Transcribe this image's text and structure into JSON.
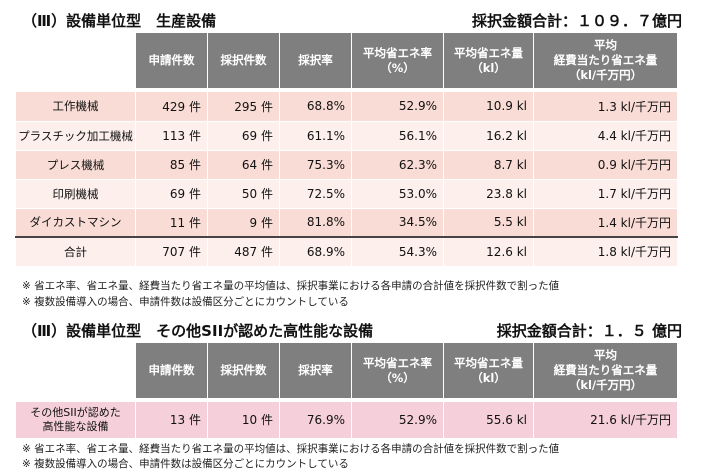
{
  "section1": {
    "title": "（Ⅲ）設備単位型　生産設備",
    "amount": "採択金額合計：１０９．７億円",
    "headers": [
      "申請件数",
      "採択件数",
      "採択率",
      "平均省エネ率\n（%）",
      "平均省エネ量\n（kl）",
      "平均\n経費当たり省エネ量\n（kl/千万円）"
    ],
    "rows": [
      {
        "category": "工作機械",
        "apply": "429 件",
        "adopt": "295 件",
        "rate": "68.8%",
        "save_rate": "52.9%",
        "save_amount": "10.9 kl",
        "per_cost": "1.3 kl/千万円"
      },
      {
        "category": "プラスチック加工機械",
        "apply": "113 件",
        "adopt": "69 件",
        "rate": "61.1%",
        "save_rate": "56.1%",
        "save_amount": "16.2 kl",
        "per_cost": "4.4 kl/千万円"
      },
      {
        "category": "プレス機械",
        "apply": "85 件",
        "adopt": "64 件",
        "rate": "75.3%",
        "save_rate": "62.3%",
        "save_amount": "8.7 kl",
        "per_cost": "0.9 kl/千万円"
      },
      {
        "category": "印刷機械",
        "apply": "69 件",
        "adopt": "50 件",
        "rate": "72.5%",
        "save_rate": "53.0%",
        "save_amount": "23.8 kl",
        "per_cost": "1.7 kl/千万円"
      },
      {
        "category": "ダイカストマシン",
        "apply": "11 件",
        "adopt": "9 件",
        "rate": "81.8%",
        "save_rate": "34.5%",
        "save_amount": "5.5 kl",
        "per_cost": "1.4 kl/千万円"
      }
    ],
    "total": {
      "category": "合計",
      "apply": "707 件",
      "adopt": "487 件",
      "rate": "68.9%",
      "save_rate": "54.3%",
      "save_amount": "12.6 kl",
      "per_cost": "1.8 kl/千万円"
    },
    "notes": [
      "※ 省エネ率、省エネ量、経費当たり省エネ量の平均値は、採択事業における各申請の合計値を採択件数で割った値",
      "※ 複数設備導入の場合、申請件数は設備区分ごとにカウントしている"
    ]
  },
  "section2": {
    "title": "（Ⅲ）設備単位型　その他SIIが認めた高性能な設備",
    "amount": "採択金額合計：１．５ 億円",
    "headers": [
      "申請件数",
      "採択件数",
      "採択率",
      "平均省エネ率\n（%）",
      "平均省エネ量\n（kl）",
      "平均\n経費当たり省エネ量\n（kl/千万円）"
    ],
    "rows": [
      {
        "category": "その他SIIが認めた\n高性能な設備",
        "apply": "13 件",
        "adopt": "10 件",
        "rate": "76.9%",
        "save_rate": "52.9%",
        "save_amount": "55.6 kl",
        "per_cost": "21.6 kl/千万円"
      }
    ],
    "notes": [
      "※ 省エネ率、省エネ量、経費当たり省エネ量の平均値は、採択事業における各申請の合計値を採択件数で割った値",
      "※ 複数設備導入の場合、申請件数は設備区分ごとにカウントしている"
    ]
  }
}
